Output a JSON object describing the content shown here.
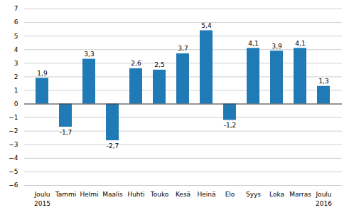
{
  "chart_data": {
    "type": "bar",
    "categories": [
      "Joulu",
      "Tammi",
      "Helmi",
      "Maalis",
      "Huhti",
      "Touko",
      "Kesä",
      "Heinä",
      "Elo",
      "Syys",
      "Loka",
      "Marras",
      "Joulu"
    ],
    "values": [
      1.9,
      -1.7,
      3.3,
      -2.7,
      2.6,
      2.5,
      3.7,
      5.4,
      -1.2,
      4.1,
      3.9,
      4.1,
      1.3
    ],
    "value_labels": [
      "1,9",
      "-1,7",
      "3,3",
      "-2,7",
      "2,6",
      "2,5",
      "3,7",
      "5,4",
      "-1,2",
      "4,1",
      "3,9",
      "4,1",
      "1,3"
    ],
    "data_labels": true,
    "color": "#1f7ab5",
    "ylim": [
      -6,
      7
    ],
    "yticks": [
      -6,
      -5,
      -4,
      -3,
      -2,
      -1,
      0,
      1,
      2,
      3,
      4,
      5,
      6,
      7
    ],
    "grid": true,
    "annotations": [
      {
        "text": "2015",
        "category": 0
      },
      {
        "text": "2016",
        "category": 12
      }
    ]
  }
}
